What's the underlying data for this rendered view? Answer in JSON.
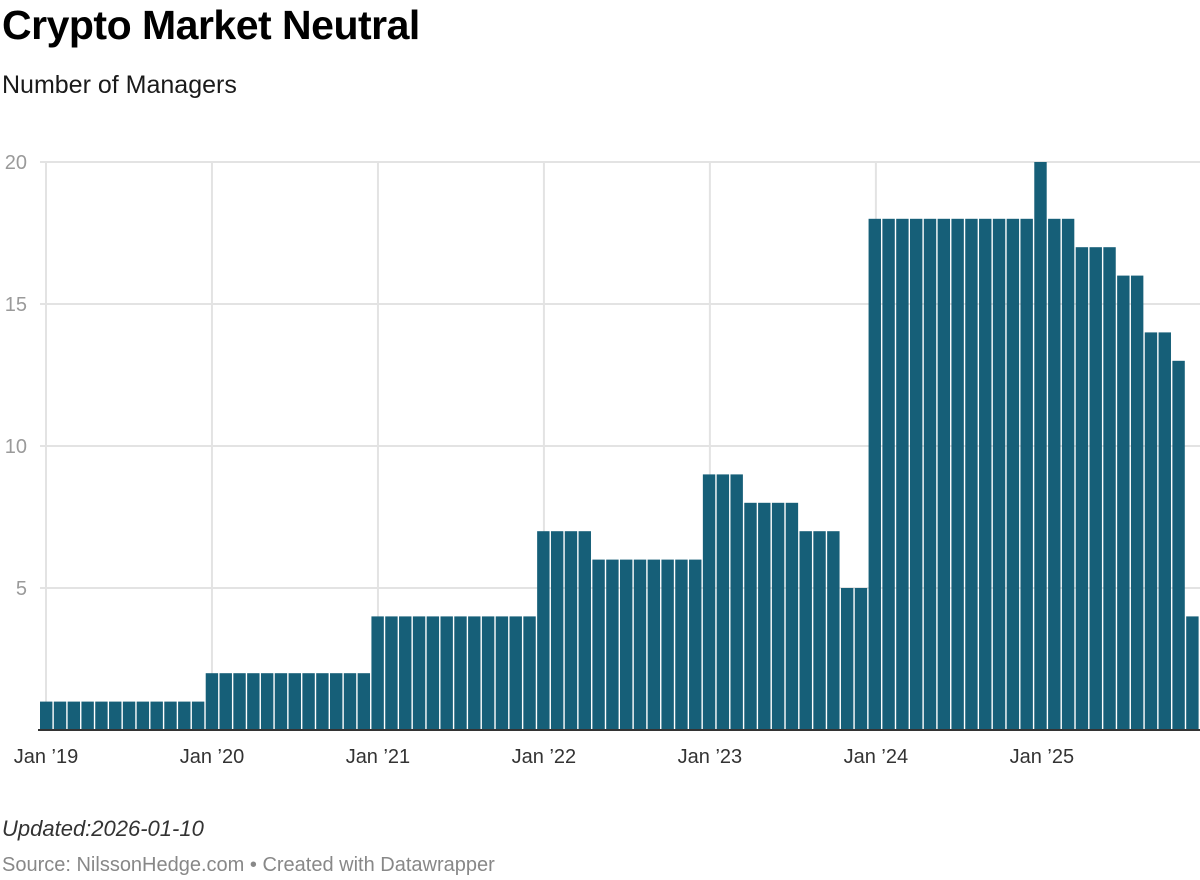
{
  "header": {
    "title": "Crypto Market Neutral",
    "subtitle": "Number of Managers"
  },
  "footer": {
    "updated": "Updated:2026-01-10",
    "source": "Source: NilssonHedge.com • Created with Datawrapper"
  },
  "colors": {
    "bar": "#165f78",
    "grid": "#e3e3e3",
    "axis": "#333333"
  },
  "chart_data": {
    "type": "bar",
    "title": "Crypto Market Neutral",
    "ylabel": "Number of Managers",
    "xlabel": "",
    "ylim": [
      0,
      20
    ],
    "yticks": [
      5,
      10,
      15,
      20
    ],
    "x_range": [
      2019.0,
      2025.9167
    ],
    "xticks": [
      {
        "label": "Jan ’19",
        "year": 2019
      },
      {
        "label": "Jan ’20",
        "year": 2020
      },
      {
        "label": "Jan ’21",
        "year": 2021
      },
      {
        "label": "Jan ’22",
        "year": 2022
      },
      {
        "label": "Jan ’23",
        "year": 2023
      },
      {
        "label": "Jan ’24",
        "year": 2024
      },
      {
        "label": "Jan ’25",
        "year": 2025
      }
    ],
    "series": [
      {
        "name": "Number of Managers",
        "start": "2019-01",
        "frequency": "monthly",
        "values": [
          1,
          1,
          1,
          1,
          1,
          1,
          1,
          1,
          1,
          1,
          1,
          1,
          2,
          2,
          2,
          2,
          2,
          2,
          2,
          2,
          2,
          2,
          2,
          2,
          4,
          4,
          4,
          4,
          4,
          4,
          4,
          4,
          4,
          4,
          4,
          4,
          7,
          7,
          7,
          7,
          6,
          6,
          6,
          6,
          6,
          6,
          6,
          6,
          9,
          9,
          9,
          8,
          8,
          8,
          8,
          7,
          7,
          7,
          5,
          5,
          18,
          18,
          18,
          18,
          18,
          18,
          18,
          18,
          18,
          18,
          18,
          18,
          20,
          18,
          18,
          17,
          17,
          17,
          16,
          16,
          14,
          14,
          13,
          4
        ]
      }
    ]
  }
}
